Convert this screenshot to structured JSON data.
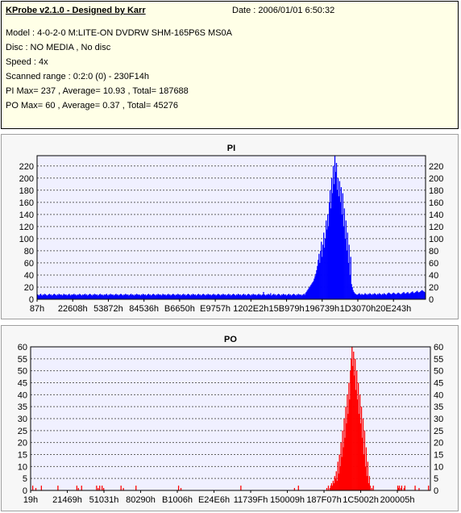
{
  "info": {
    "title": "KProbe v2.1.0 - Designed by Karr",
    "date": "Date : 2006/01/01 6:50:32",
    "lines": [
      "Model : 4-0-2-0 M:LITE-ON DVDRW SHM-165P6S MS0A",
      "Disc : NO MEDIA , No disc",
      "Speed : 4x",
      "Scanned range : 0:2:0 (0) - 230F14h",
      "PI Max= 237 , Average= 10.93 , Total= 187688",
      "PO Max= 60 , Average= 0.37 , Total= 45276"
    ]
  },
  "colors": {
    "pi_bar": "#0000ff",
    "po_bar": "#ff0000",
    "plot_bg": "#f0f0ff",
    "grid": "#606060"
  },
  "chart_data": [
    {
      "type": "bar",
      "title": "PI",
      "ylim": [
        0,
        237
      ],
      "yticks": [
        0,
        20,
        40,
        60,
        80,
        100,
        120,
        140,
        160,
        180,
        200,
        220
      ],
      "xticklabels": [
        "87h",
        "22608h",
        "53872h",
        "84536h",
        "B6650h",
        "E9757h",
        "1202E2h",
        "15B979h",
        "196739h",
        "1D3070h",
        "20E243h"
      ],
      "grid": true,
      "series": [
        {
          "values": [
            8,
            7,
            6,
            8,
            9,
            7,
            6,
            8,
            7,
            9,
            8,
            7,
            6,
            7,
            8,
            9,
            7,
            8,
            6,
            7,
            8,
            9,
            8,
            7,
            6,
            8,
            7,
            9,
            8,
            7,
            8,
            6,
            7,
            9,
            8,
            7,
            8,
            6,
            7,
            8,
            9,
            7,
            6,
            8,
            7,
            8,
            9,
            7,
            8,
            6,
            7,
            8,
            7,
            9,
            8,
            7,
            6,
            8,
            7,
            8,
            9,
            7,
            8,
            6,
            7,
            8,
            9,
            8,
            7,
            6,
            8,
            7,
            9,
            8,
            7,
            8,
            6,
            7,
            8,
            9,
            7,
            8,
            7,
            6,
            8,
            7,
            8,
            9,
            7,
            6,
            8,
            7,
            9,
            8,
            7,
            8,
            6,
            7,
            8,
            9,
            7,
            8,
            6,
            7,
            8,
            9,
            8,
            7,
            6,
            8,
            7,
            9,
            8,
            7,
            8,
            6,
            7,
            8,
            9,
            7,
            8,
            7,
            6,
            8,
            7,
            9,
            8,
            7,
            8,
            7,
            6,
            8,
            7,
            9,
            8,
            7,
            8,
            6,
            7,
            8,
            9,
            7,
            8,
            6,
            7,
            8,
            9,
            8,
            7,
            6,
            8,
            7,
            9,
            8,
            7,
            8,
            6,
            7,
            9,
            8,
            7,
            8,
            6,
            7,
            8,
            9,
            7,
            8,
            6,
            7,
            8,
            9,
            8,
            7,
            6,
            8,
            7,
            9,
            8,
            7,
            8,
            6,
            7,
            8,
            9,
            7,
            8,
            6,
            7,
            8,
            9,
            8,
            7,
            6,
            8,
            7,
            9,
            8,
            7,
            8,
            6,
            7,
            8,
            9,
            7,
            8,
            6,
            7,
            8,
            9,
            8,
            7,
            6,
            8,
            7,
            9,
            8,
            7,
            8,
            6,
            7,
            8,
            9,
            7,
            8,
            6,
            7,
            8,
            9,
            8,
            7,
            6,
            8,
            7,
            9,
            8,
            7,
            8,
            6,
            7,
            8,
            9,
            7,
            8,
            6,
            7,
            8,
            9,
            8,
            7,
            6,
            8,
            7,
            9,
            8,
            7,
            8,
            6,
            7,
            8,
            9,
            7,
            8,
            6,
            7,
            8,
            9,
            8,
            7,
            6,
            8,
            7,
            9,
            8,
            7,
            8,
            6,
            7,
            8,
            9,
            7,
            8,
            6,
            7,
            8,
            12,
            8,
            7,
            6,
            8,
            7,
            9,
            8,
            7,
            10,
            6,
            7,
            8,
            9,
            7,
            8,
            6,
            7,
            8,
            9,
            8,
            7,
            6,
            8,
            7,
            9,
            8,
            7,
            8,
            6,
            7,
            8,
            9,
            7,
            8,
            6,
            7,
            8,
            9,
            8,
            7,
            6,
            8,
            7,
            9,
            8,
            7,
            8,
            6,
            7,
            8,
            9,
            7,
            10,
            12,
            14,
            16,
            18,
            20,
            22,
            24,
            26,
            28,
            30,
            34,
            38,
            42,
            48,
            55,
            65,
            75,
            60,
            80,
            95,
            70,
            90,
            110,
            85,
            100,
            130,
            115,
            140,
            120,
            160,
            180,
            150,
            200,
            175,
            220,
            190,
            237,
            210,
            225,
            180,
            200,
            170,
            195,
            160,
            185,
            140,
            175,
            120,
            150,
            100,
            130,
            80,
            110,
            60,
            90,
            40,
            70,
            25,
            20,
            15,
            12,
            10,
            9,
            8,
            7,
            8,
            9,
            10,
            8,
            7,
            9,
            8,
            7,
            8,
            10,
            9,
            8,
            7,
            9,
            8,
            10,
            9,
            8,
            7,
            9,
            8,
            10,
            9,
            8,
            7,
            9,
            8,
            10,
            9,
            8,
            7,
            9,
            8,
            10,
            9,
            8,
            7,
            9,
            10,
            11,
            10,
            9,
            8,
            9,
            10,
            11,
            10,
            9,
            8,
            9,
            10,
            11,
            10,
            9,
            8,
            9,
            10,
            11,
            12,
            10,
            9,
            10,
            11,
            12,
            10,
            9,
            10,
            11,
            12,
            13,
            11,
            10,
            11,
            12,
            13,
            14,
            12,
            11,
            12,
            13,
            14,
            15,
            14,
            13,
            12,
            11
          ]
        }
      ]
    },
    {
      "type": "bar",
      "title": "PO",
      "ylim": [
        0,
        60
      ],
      "yticks": [
        0,
        5,
        10,
        15,
        20,
        25,
        30,
        35,
        40,
        45,
        50,
        55,
        60
      ],
      "xticklabels": [
        "19h",
        "21469h",
        "51031h",
        "80290h",
        "B1006h",
        "E24E6h",
        "11739Fh",
        "150009h",
        "187F07h",
        "1C5002h",
        "200005h"
      ],
      "grid": true,
      "series": [
        {
          "values": [
            0,
            0,
            2,
            0,
            0,
            0,
            1,
            0,
            0,
            0,
            0,
            0,
            0,
            2,
            0,
            0,
            0,
            0,
            0,
            0,
            0,
            0,
            0,
            0,
            0,
            0,
            0,
            0,
            0,
            0,
            0,
            0,
            0,
            0,
            2,
            0,
            0,
            0,
            0,
            0,
            0,
            0,
            0,
            0,
            0,
            0,
            0,
            0,
            0,
            0,
            0,
            0,
            0,
            0,
            0,
            0,
            0,
            0,
            2,
            0,
            1,
            0,
            0,
            0,
            2,
            0,
            0,
            0,
            0,
            0,
            0,
            0,
            0,
            0,
            0,
            0,
            0,
            0,
            0,
            0,
            0,
            0,
            0,
            2,
            0,
            1,
            0,
            2,
            0,
            0,
            2,
            0,
            1,
            0,
            0,
            0,
            0,
            0,
            0,
            0,
            0,
            0,
            0,
            0,
            0,
            0,
            0,
            0,
            0,
            0,
            0,
            0,
            0,
            0,
            2,
            0,
            0,
            1,
            0,
            0,
            0,
            0,
            0,
            0,
            0,
            0,
            0,
            0,
            0,
            0,
            0,
            0,
            0,
            2,
            0,
            0,
            0,
            0,
            0,
            0,
            0,
            0,
            0,
            0,
            0,
            0,
            0,
            0,
            0,
            0,
            0,
            0,
            0,
            0,
            0,
            0,
            0,
            0,
            0,
            0,
            0,
            0,
            0,
            0,
            0,
            0,
            0,
            0,
            0,
            0,
            0,
            0,
            0,
            0,
            0,
            0,
            0,
            0,
            0,
            0,
            0,
            0,
            0,
            0,
            0,
            0,
            0,
            2,
            0,
            0,
            1,
            0,
            0,
            0,
            0,
            0,
            0,
            0,
            0,
            0,
            0,
            0,
            0,
            0,
            0,
            0,
            0,
            0,
            0,
            0,
            0,
            0,
            0,
            0,
            0,
            0,
            0,
            0,
            0,
            0,
            0,
            0,
            0,
            0,
            0,
            0,
            0,
            0,
            0,
            0,
            0,
            0,
            0,
            0,
            0,
            0,
            0,
            0,
            0,
            0,
            0,
            0,
            0,
            0,
            0,
            0,
            0,
            0,
            0,
            0,
            0,
            0,
            0,
            0,
            0,
            0,
            0,
            0,
            0,
            0,
            0,
            0,
            0,
            0,
            0,
            0,
            2,
            0,
            0,
            0,
            0,
            0,
            0,
            0,
            0,
            0,
            0,
            0,
            0,
            0,
            0,
            0,
            0,
            0,
            0,
            0,
            0,
            0,
            0,
            0,
            0,
            0,
            0,
            0,
            0,
            0,
            0,
            0,
            0,
            0,
            0,
            0,
            0,
            0,
            0,
            0,
            0,
            0,
            0,
            0,
            0,
            0,
            0,
            0,
            0,
            0,
            0,
            0,
            0,
            0,
            0,
            0,
            0,
            0,
            0,
            0,
            0,
            0,
            0,
            0,
            0,
            0,
            0,
            0,
            1,
            0,
            0,
            0,
            0,
            2,
            0,
            0,
            0,
            0,
            0,
            0,
            0,
            0,
            0,
            0,
            0,
            0,
            0,
            0,
            0,
            0,
            0,
            0,
            0,
            0,
            0,
            0,
            0,
            0,
            0,
            0,
            0,
            0,
            0,
            0,
            0,
            0,
            0,
            0,
            0,
            1,
            0,
            2,
            0,
            1,
            2,
            3,
            2,
            4,
            3,
            6,
            5,
            8,
            4,
            12,
            7,
            15,
            10,
            20,
            14,
            25,
            18,
            30,
            22,
            35,
            28,
            40,
            32,
            45,
            38,
            50,
            55,
            60,
            52,
            58,
            48,
            55,
            42,
            50,
            38,
            45,
            32,
            40,
            28,
            35,
            22,
            30,
            15,
            25,
            10,
            18,
            6,
            12,
            3,
            6,
            2,
            0,
            1,
            0,
            2,
            0,
            0,
            0,
            0,
            0,
            0,
            0,
            0,
            0,
            0,
            0,
            0,
            0,
            0,
            0,
            0,
            0,
            0,
            0,
            0,
            0,
            0,
            0,
            0,
            0,
            0,
            0,
            0,
            0,
            0,
            2,
            1,
            2,
            0,
            1,
            2,
            0,
            0,
            1,
            2,
            0,
            0,
            0,
            0,
            0,
            0,
            0,
            0,
            0,
            0,
            0,
            0,
            2,
            0,
            0,
            0,
            0,
            1,
            0,
            0,
            0,
            0,
            0,
            0,
            0,
            0,
            0,
            0,
            0,
            2,
            0,
            0
          ]
        }
      ]
    }
  ]
}
